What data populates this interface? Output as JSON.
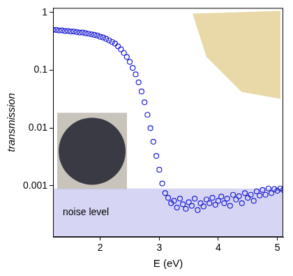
{
  "chart_data": {
    "type": "scatter",
    "x_label": "E (eV)",
    "y_label": "transmission",
    "x": [
      1.2,
      1.25,
      1.3,
      1.35,
      1.4,
      1.45,
      1.5,
      1.55,
      1.6,
      1.65,
      1.7,
      1.75,
      1.8,
      1.85,
      1.9,
      1.95,
      2.0,
      2.05,
      2.1,
      2.15,
      2.2,
      2.25,
      2.3,
      2.35,
      2.4,
      2.45,
      2.5,
      2.55,
      2.6,
      2.65,
      2.7,
      2.75,
      2.8,
      2.85,
      2.9,
      2.95,
      3.0,
      3.05,
      3.1,
      3.15,
      3.2,
      3.25,
      3.3,
      3.35,
      3.4,
      3.45,
      3.5,
      3.55,
      3.6,
      3.65,
      3.7,
      3.75,
      3.8,
      3.85,
      3.9,
      3.95,
      4.0,
      4.05,
      4.1,
      4.15,
      4.2,
      4.25,
      4.3,
      4.35,
      4.4,
      4.45,
      4.5,
      4.55,
      4.6,
      4.65,
      4.7,
      4.75,
      4.8,
      4.85,
      4.9,
      4.95,
      5.0,
      5.05,
      5.1
    ],
    "values": [
      0.5,
      0.5,
      0.49,
      0.49,
      0.48,
      0.48,
      0.47,
      0.47,
      0.46,
      0.45,
      0.45,
      0.44,
      0.43,
      0.42,
      0.41,
      0.4,
      0.38,
      0.37,
      0.35,
      0.33,
      0.31,
      0.29,
      0.26,
      0.23,
      0.2,
      0.17,
      0.14,
      0.11,
      0.085,
      0.062,
      0.043,
      0.028,
      0.017,
      0.01,
      0.0058,
      0.0033,
      0.0019,
      0.0011,
      0.00075,
      0.00062,
      0.0005,
      0.00055,
      0.00042,
      0.0006,
      0.00048,
      0.0004,
      0.00052,
      0.00045,
      0.0006,
      0.00038,
      0.0005,
      0.00044,
      0.00058,
      0.0005,
      0.00062,
      0.00047,
      0.00055,
      0.00065,
      0.0005,
      0.0006,
      0.00045,
      0.0007,
      0.00058,
      0.00066,
      0.0005,
      0.00075,
      0.00062,
      0.0007,
      0.00055,
      0.0008,
      0.00068,
      0.00085,
      0.0007,
      0.0009,
      0.00075,
      0.00088,
      0.00082,
      0.0009,
      0.00085
    ],
    "color": "#1f1fd6",
    "marker": "circle",
    "log": "y",
    "grid": false,
    "xlim": [
      1.2,
      5.1
    ],
    "xticks": [
      2,
      3,
      4,
      5
    ],
    "ylim": [
      0.00013,
      1.2
    ],
    "yticks": [
      0.001,
      0.01,
      0.1,
      1
    ],
    "noise_level": {
      "text": "noise level",
      "upper": 0.0009,
      "color": "#c8c8f0"
    }
  }
}
